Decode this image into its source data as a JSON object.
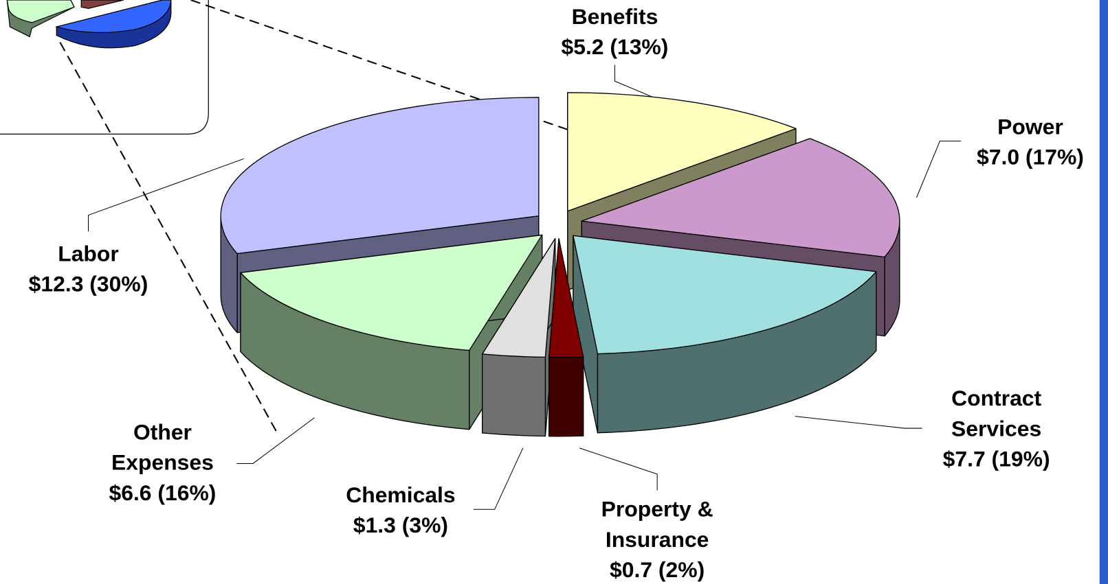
{
  "chart_data": {
    "type": "pie3d",
    "categories": [
      "Benefits",
      "Power",
      "Contract Services",
      "Property & Insurance",
      "Chemicals",
      "Other Expenses",
      "Labor"
    ],
    "values": [
      5.2,
      7.0,
      7.7,
      0.7,
      1.3,
      6.6,
      12.3
    ],
    "value_labels": [
      "$5.2 (13%)",
      "$7.0 (17%)",
      "$7.7 (19%)",
      "$0.7 (2%)",
      "$1.3 (3%)",
      "$6.6 (16%)",
      "$12.3 (30%)"
    ],
    "colors": [
      "#ffffc0",
      "#cc99cc",
      "#a0e0e0",
      "#800000",
      "#e0e0e0",
      "#ccffcc",
      "#c0c0ff"
    ]
  }
}
